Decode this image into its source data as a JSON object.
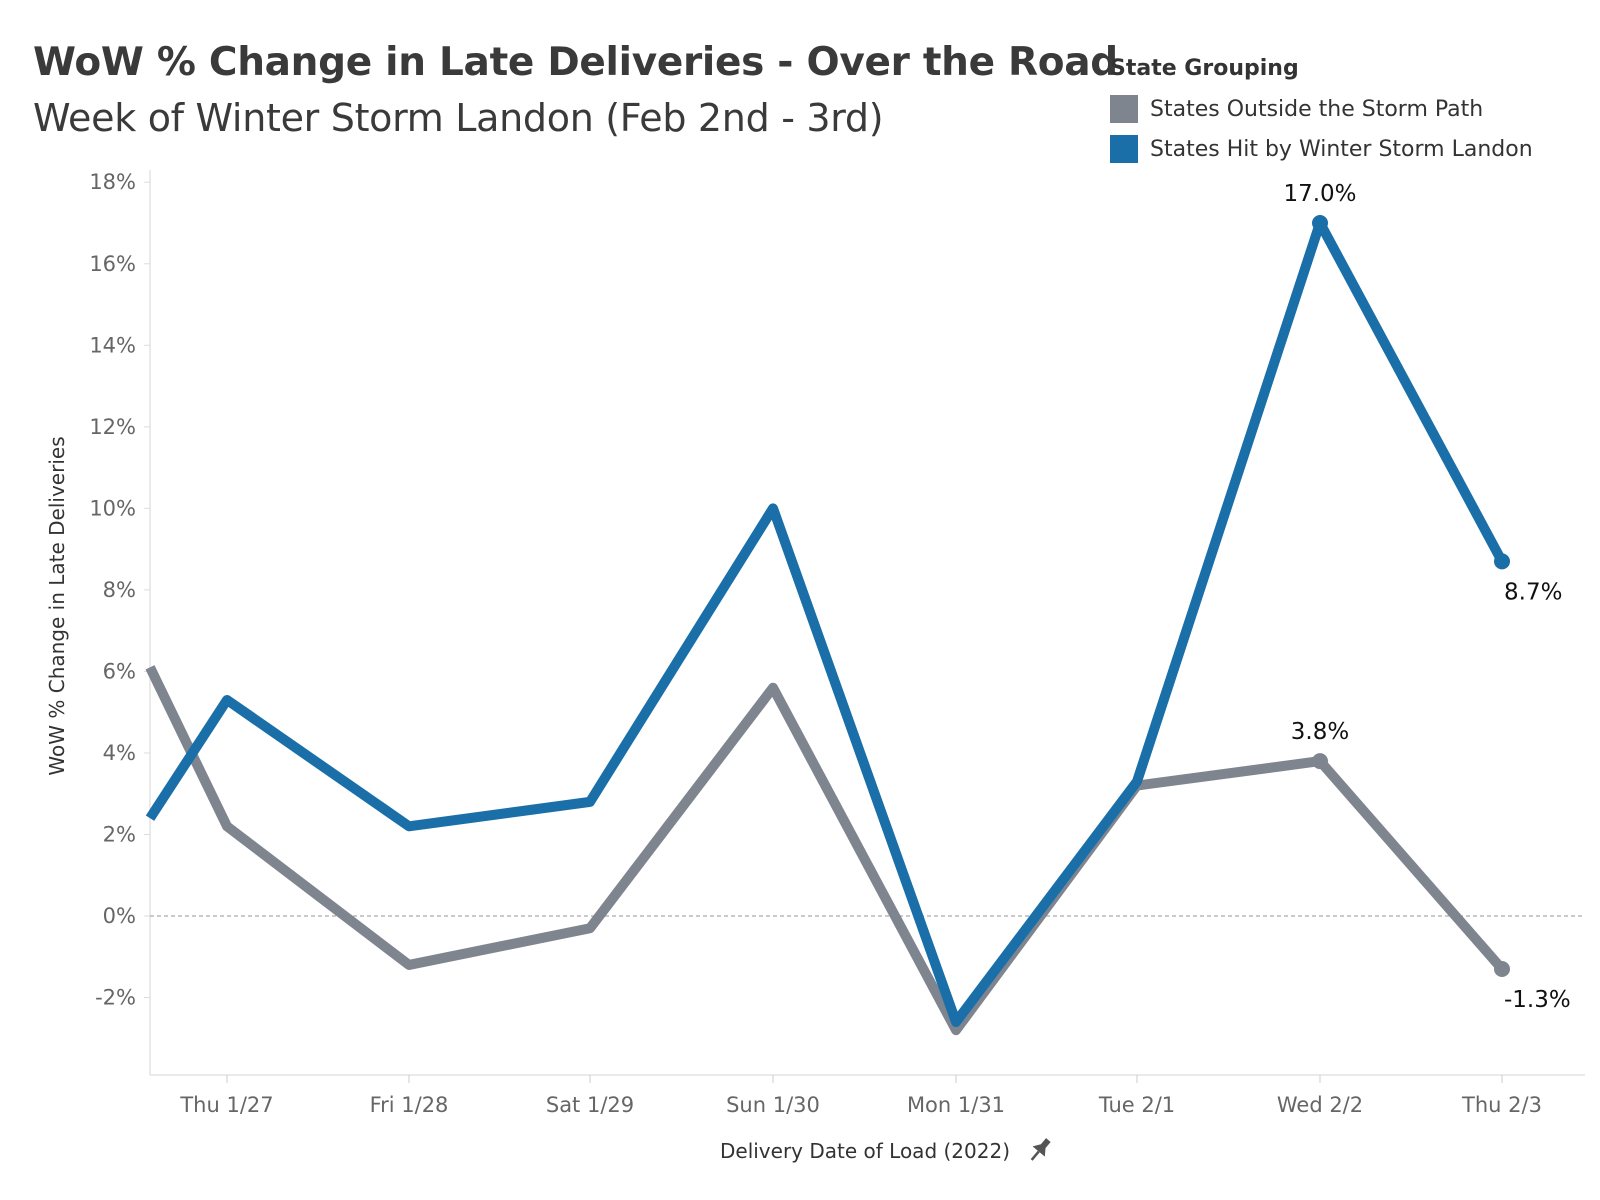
{
  "title": "WoW % Change in Late Deliveries - Over the Road",
  "subtitle": "Week of Winter Storm Landon (Feb 2nd - 3rd)",
  "legend": {
    "title": "State Grouping",
    "items": [
      {
        "label": "States Outside the Storm Path",
        "color": "#7f858f"
      },
      {
        "label": "States Hit by Winter Storm Landon",
        "color": "#1a6fa8"
      }
    ]
  },
  "chart_data": {
    "type": "line",
    "xlabel": "Delivery Date of Load (2022)",
    "ylabel": "WoW % Change in Late Deliveries",
    "categories": [
      "Thu 1/27",
      "Fri 1/28",
      "Sat 1/29",
      "Sun 1/30",
      "Mon 1/31",
      "Tue 2/1",
      "Wed 2/2",
      "Thu 2/3"
    ],
    "y_ticks": [
      "18%",
      "16%",
      "14%",
      "12%",
      "10%",
      "8%",
      "6%",
      "4%",
      "2%",
      "0%",
      "-2%"
    ],
    "ylim": [
      -3.9,
      18.3
    ],
    "series": [
      {
        "name": "States Outside the Storm Path",
        "color": "#7f858f",
        "values": [
          2.2,
          -1.2,
          -0.3,
          5.6,
          -2.8,
          3.2,
          3.8,
          -1.3
        ],
        "leading_value": 6.1,
        "labels": [
          {
            "index": 6,
            "text": "3.8%"
          },
          {
            "index": 7,
            "text": "-1.3%"
          }
        ]
      },
      {
        "name": "States Hit by Winter Storm Landon",
        "color": "#1a6fa8",
        "values": [
          5.3,
          2.2,
          2.8,
          10.0,
          -2.6,
          3.3,
          17.0,
          8.7
        ],
        "leading_value": 2.4,
        "labels": [
          {
            "index": 6,
            "text": "17.0%"
          },
          {
            "index": 7,
            "text": "8.7%"
          }
        ]
      }
    ],
    "zero_line": true
  }
}
